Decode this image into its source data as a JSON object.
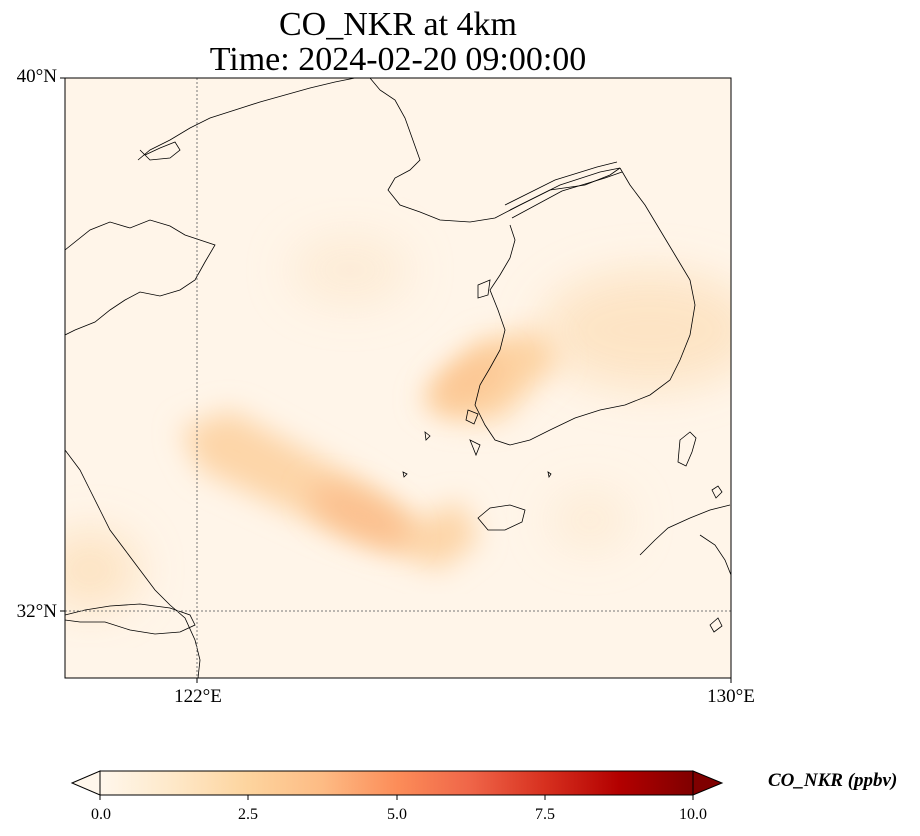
{
  "title": {
    "line1": "CO_NKR at 4km",
    "line2": "Time: 2024-02-20 09:00:00"
  },
  "axes": {
    "lat_labels": [
      "40°N",
      "32°N"
    ],
    "lon_labels": [
      "122°E",
      "130°E"
    ]
  },
  "colorbar": {
    "label": "CO_NKR (ppbv)",
    "ticks": [
      "0.0",
      "2.5",
      "5.0",
      "7.5",
      "10.0"
    ],
    "range": [
      0,
      10
    ],
    "extend": "both",
    "colormap": "OrRd",
    "colors": [
      "#fff7ec",
      "#fee8c8",
      "#fdd49e",
      "#fdbb84",
      "#fc8d59",
      "#ef6548",
      "#d7301f",
      "#b30000",
      "#7f0000"
    ]
  },
  "map": {
    "extent_lon": [
      120,
      130
    ],
    "extent_lat": [
      31,
      40
    ],
    "gridlines": "dotted",
    "background_color": "#fff5e9"
  }
}
